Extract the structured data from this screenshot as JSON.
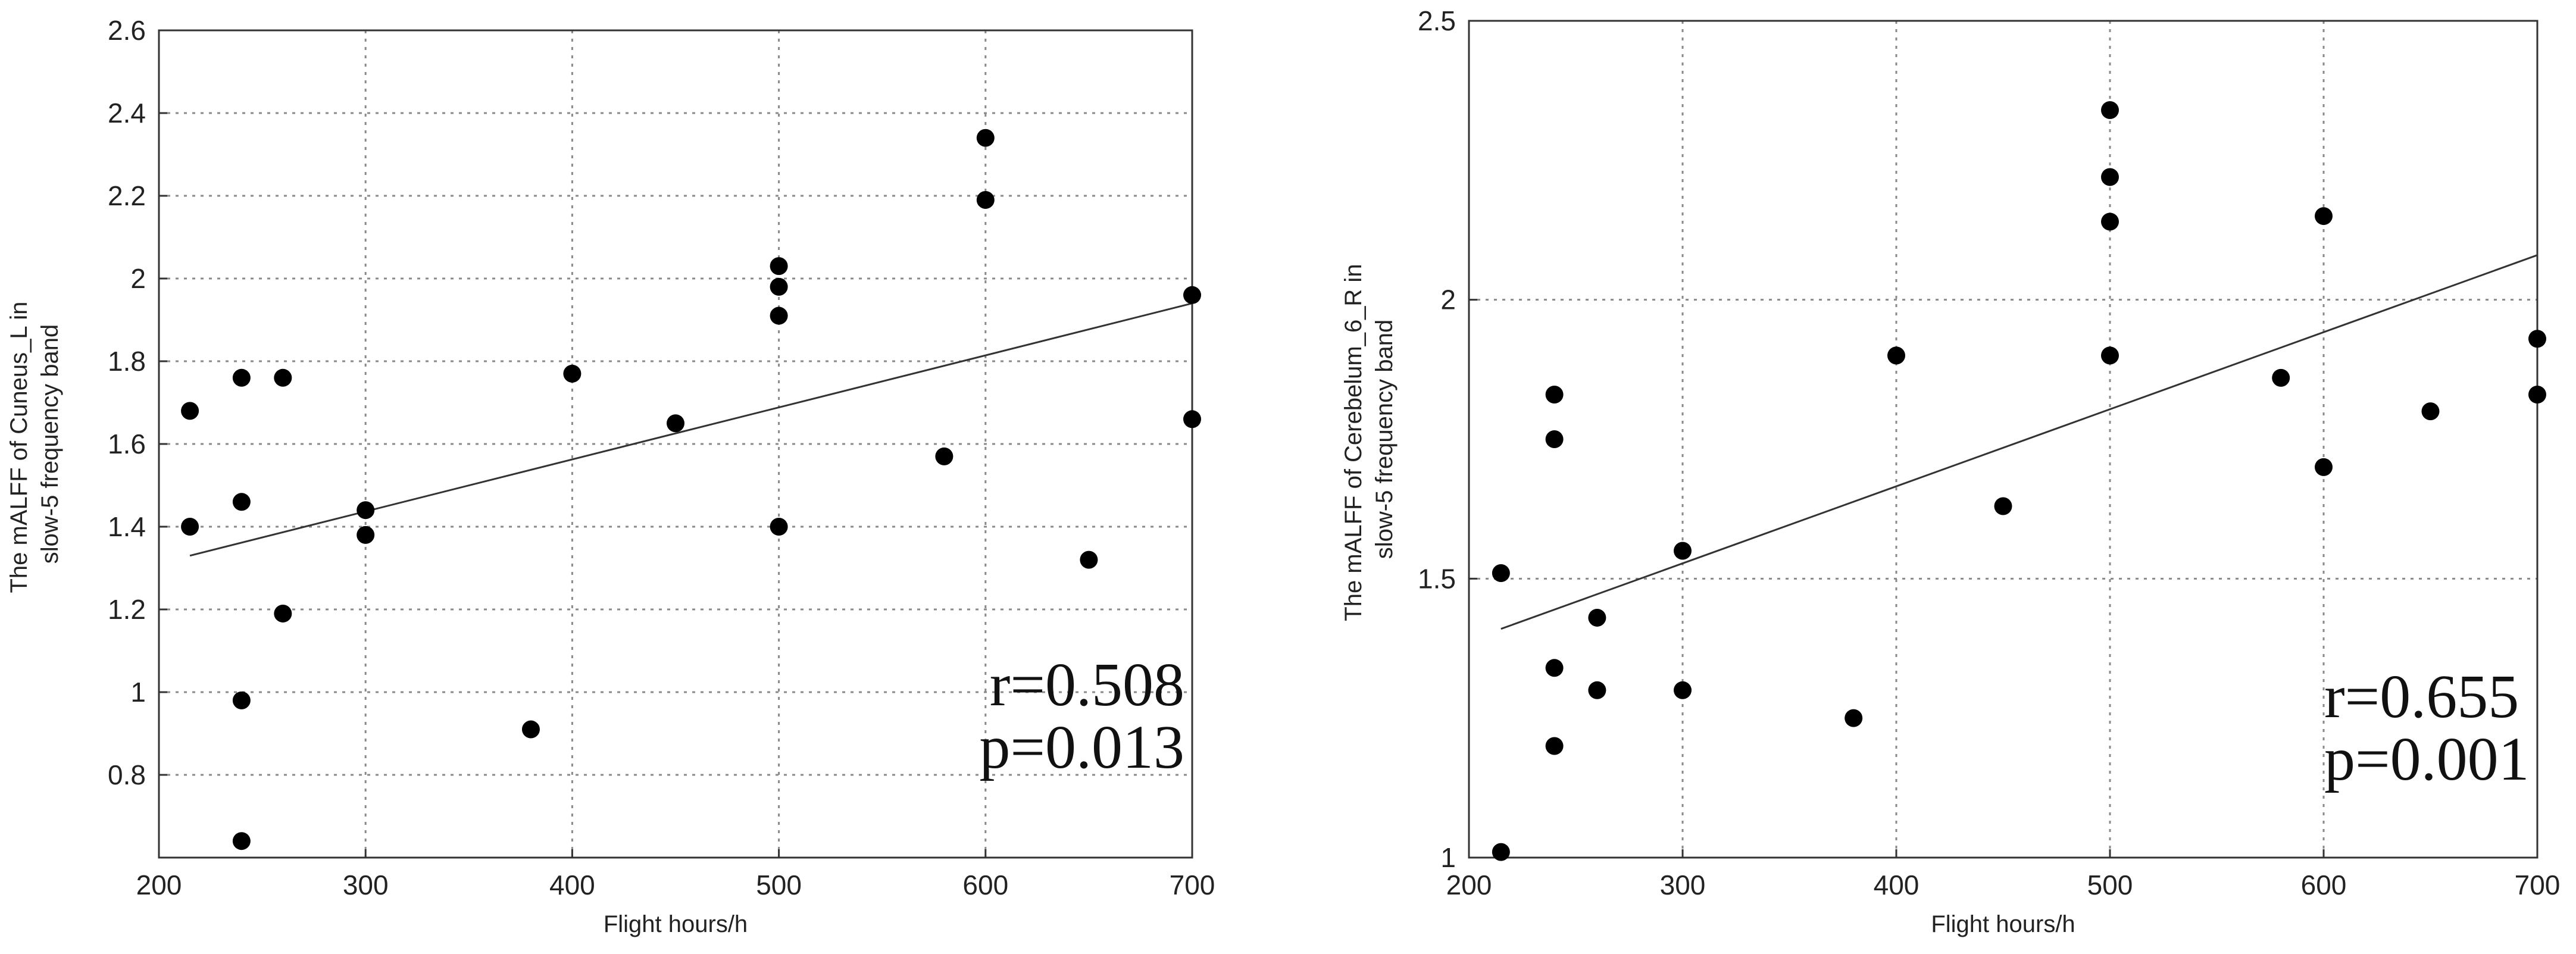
{
  "chart_data": [
    {
      "type": "scatter",
      "title": "",
      "xlabel": "Flight hours/h",
      "ylabel_lines": [
        "The mALFF of Cuneus_L in",
        "slow-5 frequency band"
      ],
      "xlim": [
        200,
        700
      ],
      "ylim": [
        0.6,
        2.6
      ],
      "xticks": [
        200,
        300,
        400,
        500,
        600,
        700
      ],
      "yticks": [
        0.8,
        1,
        1.2,
        1.4,
        1.6,
        1.8,
        2,
        2.2,
        2.4,
        2.6
      ],
      "xtick_labels": [
        "200",
        "300",
        "400",
        "500",
        "600",
        "700"
      ],
      "ytick_labels": [
        "0.8",
        "1",
        "1.2",
        "1.4",
        "1.6",
        "1.8",
        "2",
        "2.2",
        "2.4",
        "2.6"
      ],
      "grid": true,
      "fit_line": {
        "x": [
          215,
          700
        ],
        "y": [
          1.33,
          1.94
        ]
      },
      "annotations": [
        "r=0.508",
        "p=0.013"
      ],
      "points": [
        {
          "x": 215,
          "y": 1.68
        },
        {
          "x": 215,
          "y": 1.4
        },
        {
          "x": 240,
          "y": 1.76
        },
        {
          "x": 240,
          "y": 1.46
        },
        {
          "x": 240,
          "y": 0.98
        },
        {
          "x": 240,
          "y": 0.64
        },
        {
          "x": 260,
          "y": 1.76
        },
        {
          "x": 260,
          "y": 1.19
        },
        {
          "x": 300,
          "y": 1.44
        },
        {
          "x": 300,
          "y": 1.38
        },
        {
          "x": 380,
          "y": 0.91
        },
        {
          "x": 400,
          "y": 1.77
        },
        {
          "x": 450,
          "y": 1.65
        },
        {
          "x": 500,
          "y": 2.03
        },
        {
          "x": 500,
          "y": 1.98
        },
        {
          "x": 500,
          "y": 1.91
        },
        {
          "x": 500,
          "y": 1.4
        },
        {
          "x": 580,
          "y": 1.57
        },
        {
          "x": 600,
          "y": 2.34
        },
        {
          "x": 600,
          "y": 2.19
        },
        {
          "x": 650,
          "y": 1.32
        },
        {
          "x": 700,
          "y": 1.96
        },
        {
          "x": 700,
          "y": 1.66
        }
      ]
    },
    {
      "type": "scatter",
      "title": "",
      "xlabel": "Flight hours/h",
      "ylabel_lines": [
        "The mALFF of Cerebelum_6_R in",
        "slow-5 frequency band"
      ],
      "xlim": [
        200,
        700
      ],
      "ylim": [
        1,
        2.5
      ],
      "xticks": [
        200,
        300,
        400,
        500,
        600,
        700
      ],
      "yticks": [
        1,
        1.5,
        2,
        2.5
      ],
      "xtick_labels": [
        "200",
        "300",
        "400",
        "500",
        "600",
        "700"
      ],
      "ytick_labels": [
        "1",
        "1.5",
        "2",
        "2.5"
      ],
      "grid": true,
      "fit_line": {
        "x": [
          215,
          700
        ],
        "y": [
          1.41,
          2.08
        ]
      },
      "annotations": [
        "r=0.655",
        "p=0.001"
      ],
      "points": [
        {
          "x": 215,
          "y": 1.51
        },
        {
          "x": 215,
          "y": 1.01
        },
        {
          "x": 240,
          "y": 1.83
        },
        {
          "x": 240,
          "y": 1.75
        },
        {
          "x": 240,
          "y": 1.34
        },
        {
          "x": 240,
          "y": 1.2
        },
        {
          "x": 260,
          "y": 1.43
        },
        {
          "x": 260,
          "y": 1.3
        },
        {
          "x": 300,
          "y": 1.55
        },
        {
          "x": 300,
          "y": 1.3
        },
        {
          "x": 380,
          "y": 1.25
        },
        {
          "x": 400,
          "y": 1.9
        },
        {
          "x": 450,
          "y": 1.63
        },
        {
          "x": 500,
          "y": 2.34
        },
        {
          "x": 500,
          "y": 2.22
        },
        {
          "x": 500,
          "y": 2.14
        },
        {
          "x": 500,
          "y": 1.9
        },
        {
          "x": 580,
          "y": 1.86
        },
        {
          "x": 600,
          "y": 2.15
        },
        {
          "x": 600,
          "y": 1.7
        },
        {
          "x": 650,
          "y": 1.8
        },
        {
          "x": 700,
          "y": 1.93
        },
        {
          "x": 700,
          "y": 1.83
        }
      ]
    }
  ]
}
